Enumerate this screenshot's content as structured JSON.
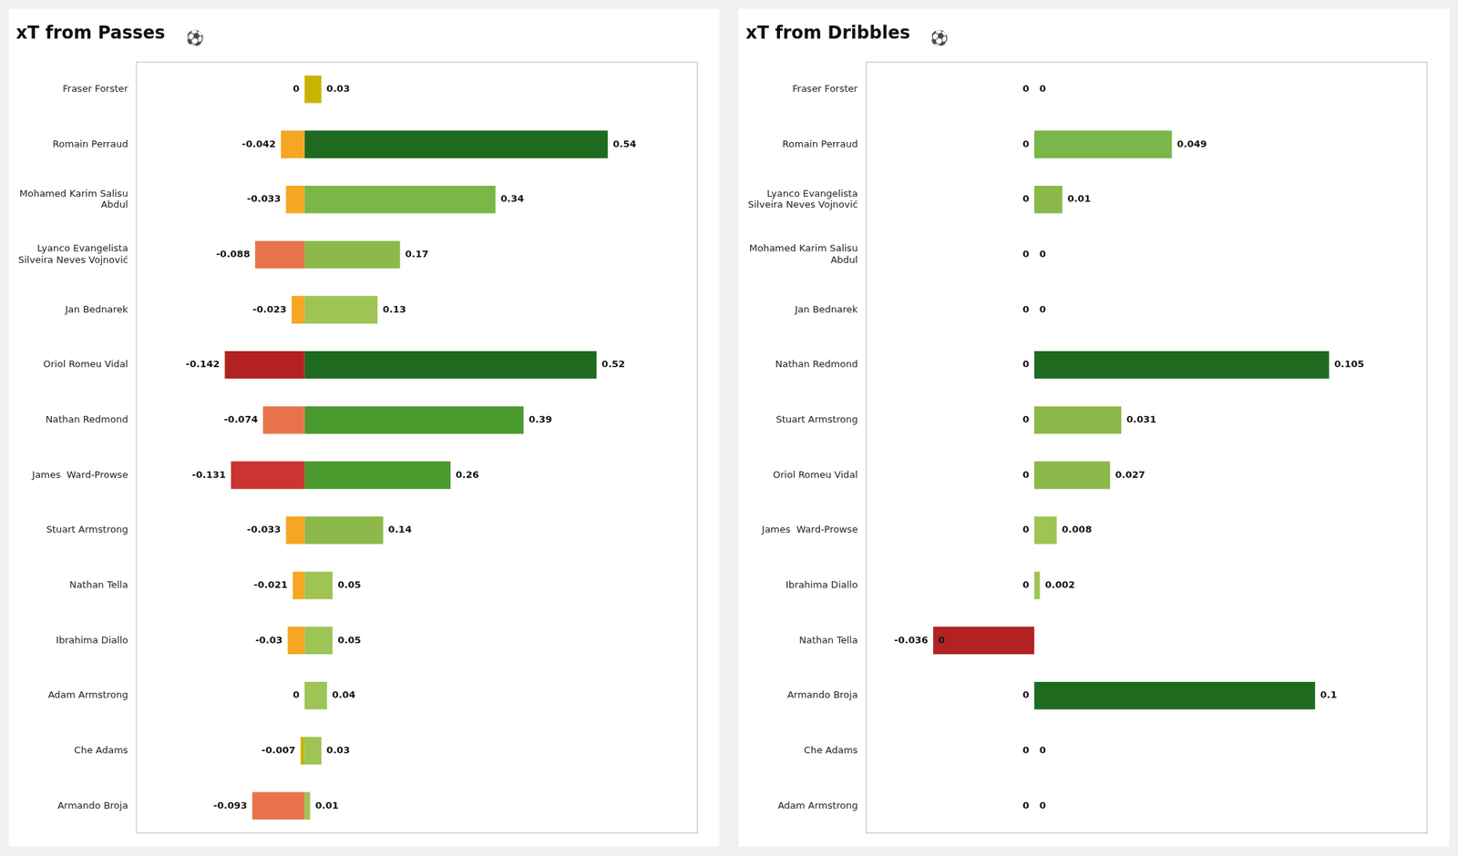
{
  "chart_data": [
    {
      "type": "bar",
      "orientation": "horizontal",
      "stacked": true,
      "title": "xT from Passes",
      "annotations": [
        "⚽"
      ],
      "categories": [
        "Fraser Forster",
        "Romain Perraud",
        "Mohamed Karim Salisu\nAbdul",
        "Lyanco Evangelista\nSilveira Neves Vojnović",
        "Jan Bednarek",
        "Oriol Romeu Vidal",
        "Nathan Redmond",
        "James  Ward-Prowse",
        "Stuart Armstrong",
        "Nathan Tella",
        "Ibrahima Diallo",
        "Adam Armstrong",
        "Che Adams",
        "Armando Broja"
      ],
      "series": [
        {
          "values": [
            0,
            -0.042,
            -0.033,
            -0.088,
            -0.023,
            -0.142,
            -0.074,
            -0.131,
            -0.033,
            -0.021,
            -0.03,
            0,
            -0.007,
            -0.093
          ],
          "colors": [
            "#c8b400",
            "#f5a623",
            "#f5a623",
            "#e8734a",
            "#f5a623",
            "#b22222",
            "#e8734a",
            "#cc3333",
            "#f5a623",
            "#f5a623",
            "#f5a623",
            "#c8b400",
            "#c8b400",
            "#e8734a"
          ]
        },
        {
          "values": [
            0.03,
            0.54,
            0.34,
            0.17,
            0.13,
            0.52,
            0.39,
            0.26,
            0.14,
            0.05,
            0.05,
            0.04,
            0.03,
            0.01
          ],
          "colors": [
            "#c8b400",
            "#1e6b20",
            "#7ab648",
            "#8db84a",
            "#9dc455",
            "#1e6b20",
            "#4a9a2e",
            "#4a9a2e",
            "#8db84a",
            "#9dc455",
            "#9dc455",
            "#9dc455",
            "#9dc455",
            "#9dc455"
          ]
        }
      ],
      "xlim": [
        -0.3,
        0.7
      ],
      "grid": false,
      "tick_labels": "y",
      "data_labels": true
    },
    {
      "type": "bar",
      "orientation": "horizontal",
      "stacked": true,
      "title": "xT from Dribbles",
      "annotations": [
        "⚽"
      ],
      "categories": [
        "Fraser Forster",
        "Romain Perraud",
        "Lyanco Evangelista\nSilveira Neves Vojnović",
        "Mohamed Karim Salisu\nAbdul",
        "Jan Bednarek",
        "Nathan Redmond",
        "Stuart Armstrong",
        "Oriol Romeu Vidal",
        "James  Ward-Prowse",
        "Ibrahima Diallo",
        "Nathan Tella",
        "Armando Broja",
        "Che Adams",
        "Adam Armstrong"
      ],
      "series": [
        {
          "values": [
            0,
            0,
            0,
            0,
            0,
            0,
            0,
            0,
            0,
            0,
            -0.036,
            0,
            0,
            0
          ],
          "colors": [
            "#c8b400",
            "#c8b400",
            "#c8b400",
            "#c8b400",
            "#c8b400",
            "#c8b400",
            "#c8b400",
            "#c8b400",
            "#c8b400",
            "#c8b400",
            "#b22222",
            "#c8b400",
            "#c8b400",
            "#c8b400"
          ]
        },
        {
          "values": [
            0,
            0.049,
            0.01,
            0,
            0,
            0.105,
            0.031,
            0.027,
            0.008,
            0.002,
            0,
            0.1,
            0,
            0
          ],
          "colors": [
            "#c8b400",
            "#7ab648",
            "#8db84a",
            "#c8b400",
            "#c8b400",
            "#1e6b20",
            "#8db84a",
            "#8db84a",
            "#9dc455",
            "#9dc455",
            "#c8b400",
            "#1e6b20",
            "#c8b400",
            "#c8b400"
          ]
        }
      ],
      "xlim": [
        -0.06,
        0.14
      ],
      "grid": false,
      "tick_labels": "y",
      "data_labels": true
    }
  ]
}
